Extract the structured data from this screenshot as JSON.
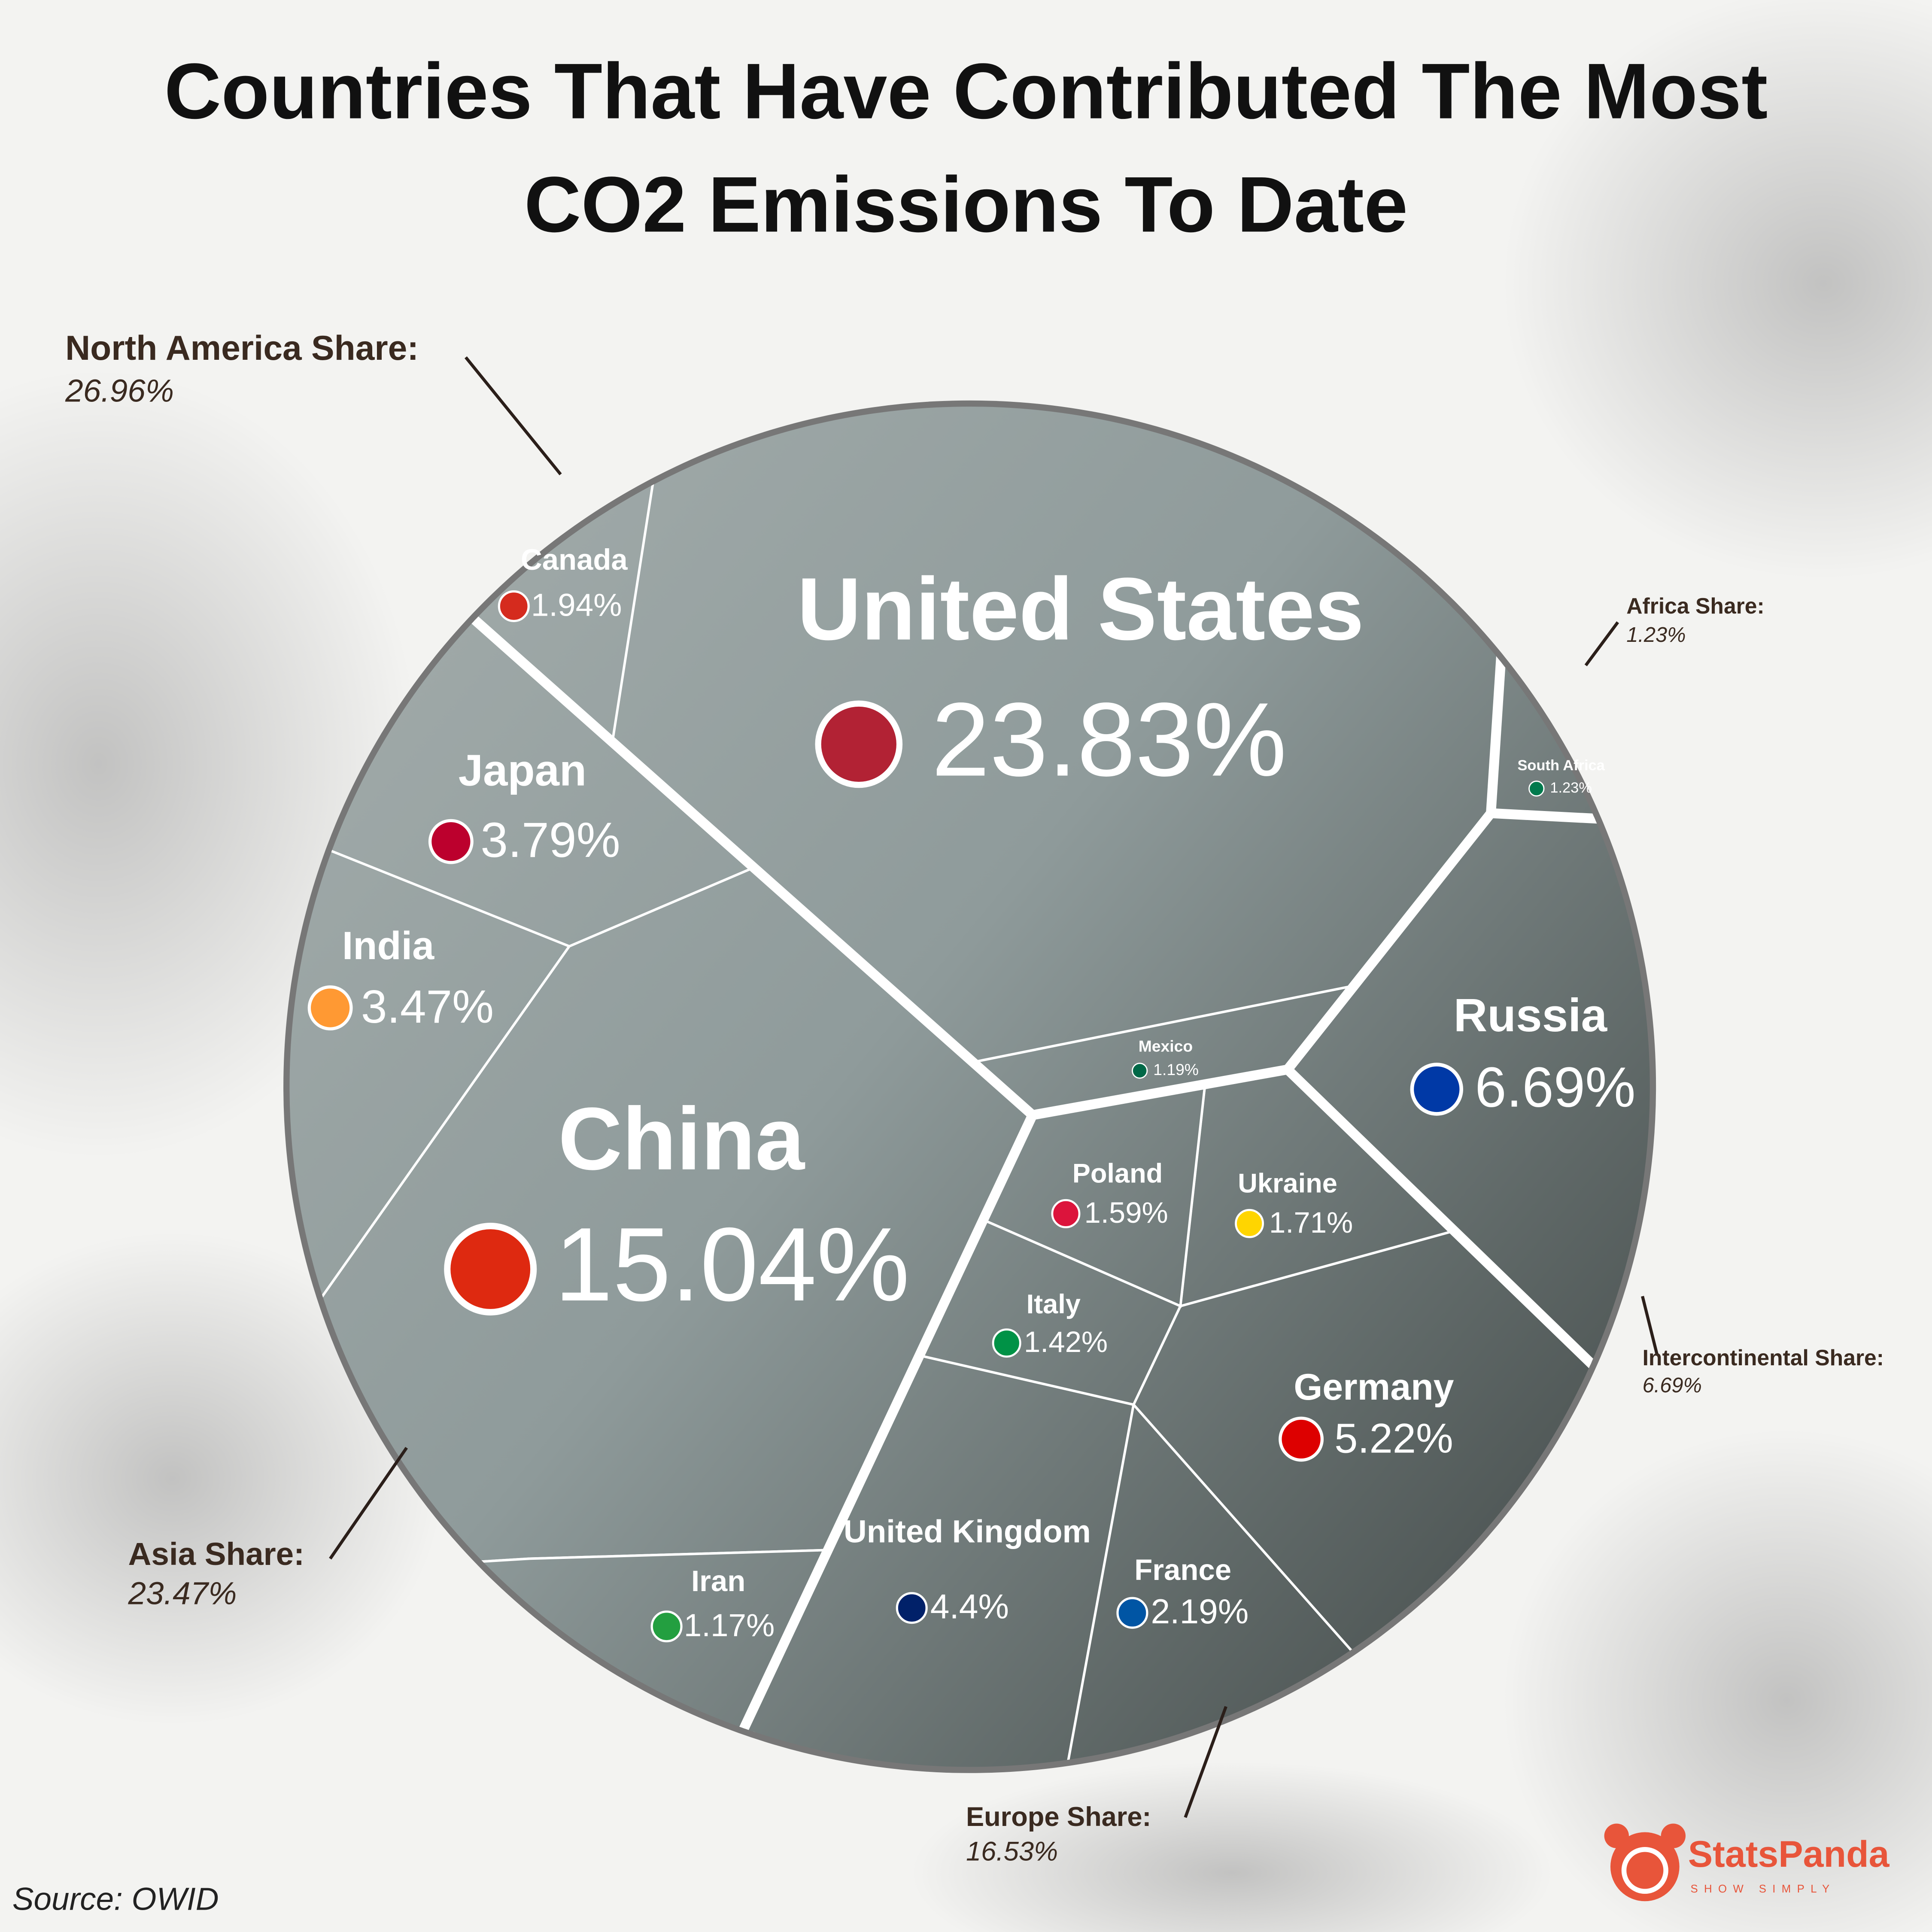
{
  "chart_data": {
    "type": "voronoi-treemap",
    "title": "Countries That Have Contributed The Most CO2 Emissions To Date",
    "source": "Source: OWID",
    "brand": "StatsPanda",
    "tagline": "SHOW SIMPLY",
    "groups": [
      {
        "name": "North America Share:",
        "value": 26.96,
        "value_label": "26.96%",
        "countries": [
          {
            "name": "United States",
            "value": 23.83,
            "value_label": "23.83%"
          },
          {
            "name": "Canada",
            "value": 1.94,
            "value_label": "1.94%"
          },
          {
            "name": "Mexico",
            "value": 1.19,
            "value_label": "1.19%"
          }
        ]
      },
      {
        "name": "Asia Share:",
        "value": 23.47,
        "value_label": "23.47%",
        "countries": [
          {
            "name": "China",
            "value": 15.04,
            "value_label": "15.04%"
          },
          {
            "name": "Japan",
            "value": 3.79,
            "value_label": "3.79%"
          },
          {
            "name": "India",
            "value": 3.47,
            "value_label": "3.47%"
          },
          {
            "name": "Iran",
            "value": 1.17,
            "value_label": "1.17%"
          }
        ]
      },
      {
        "name": "Europe Share:",
        "value": 16.53,
        "value_label": "16.53%",
        "countries": [
          {
            "name": "Germany",
            "value": 5.22,
            "value_label": "5.22%"
          },
          {
            "name": "United Kingdom",
            "value": 4.4,
            "value_label": "4.4%"
          },
          {
            "name": "France",
            "value": 2.19,
            "value_label": "2.19%"
          },
          {
            "name": "Ukraine",
            "value": 1.71,
            "value_label": "1.71%"
          },
          {
            "name": "Poland",
            "value": 1.59,
            "value_label": "1.59%"
          },
          {
            "name": "Italy",
            "value": 1.42,
            "value_label": "1.42%"
          }
        ]
      },
      {
        "name": "Intercontinental Share:",
        "value": 6.69,
        "value_label": "6.69%",
        "countries": [
          {
            "name": "Russia",
            "value": 6.69,
            "value_label": "6.69%"
          }
        ]
      },
      {
        "name": "Africa Share:",
        "value": 1.23,
        "value_label": "1.23%",
        "countries": [
          {
            "name": "South Africa",
            "value": 1.23,
            "value_label": "1.23%"
          }
        ]
      }
    ]
  }
}
